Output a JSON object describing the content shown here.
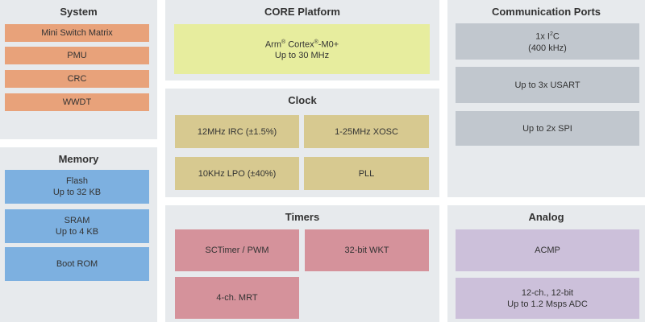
{
  "system": {
    "title": "System",
    "items": [
      "Mini Switch Matrix",
      "PMU",
      "CRC",
      "WWDT"
    ],
    "color": "#e8a27a"
  },
  "memory": {
    "title": "Memory",
    "items": [
      [
        "Flash",
        "Up to 32 KB"
      ],
      [
        "SRAM",
        "Up to 4 KB"
      ],
      [
        "Boot ROM"
      ]
    ],
    "color": "#7db0e0"
  },
  "core": {
    "title": "CORE Platform",
    "cpu_a": "Arm",
    "cpu_reg": "®",
    "cpu_b": " Cortex",
    "cpu_reg2": "®",
    "cpu_c": "-M0+",
    "freq": "Up to 30 MHz",
    "color": "#e7ed9e"
  },
  "clock": {
    "title": "Clock",
    "items": [
      "12MHz IRC (±1.5%)",
      "1-25MHz XOSC",
      "10KHz LPO (±40%)",
      "PLL"
    ],
    "color": "#d7c990"
  },
  "timers": {
    "title": "Timers",
    "items": [
      "SCTimer / PWM",
      "32-bit WKT",
      "4-ch. MRT"
    ],
    "color": "#d5929b"
  },
  "comm": {
    "title": "Communication Ports",
    "i2c_a": "1x I",
    "i2c_sup": "2",
    "i2c_b": "C",
    "i2c_speed": "(400 kHz)",
    "items": [
      "Up to 3x USART",
      "Up to 2x SPI"
    ],
    "color": "#c1c7ce"
  },
  "analog": {
    "title": "Analog",
    "items": [
      [
        "ACMP"
      ],
      [
        "12-ch., 12-bit",
        "Up to 1.2 Msps ADC"
      ]
    ],
    "color": "#ccc0da"
  }
}
